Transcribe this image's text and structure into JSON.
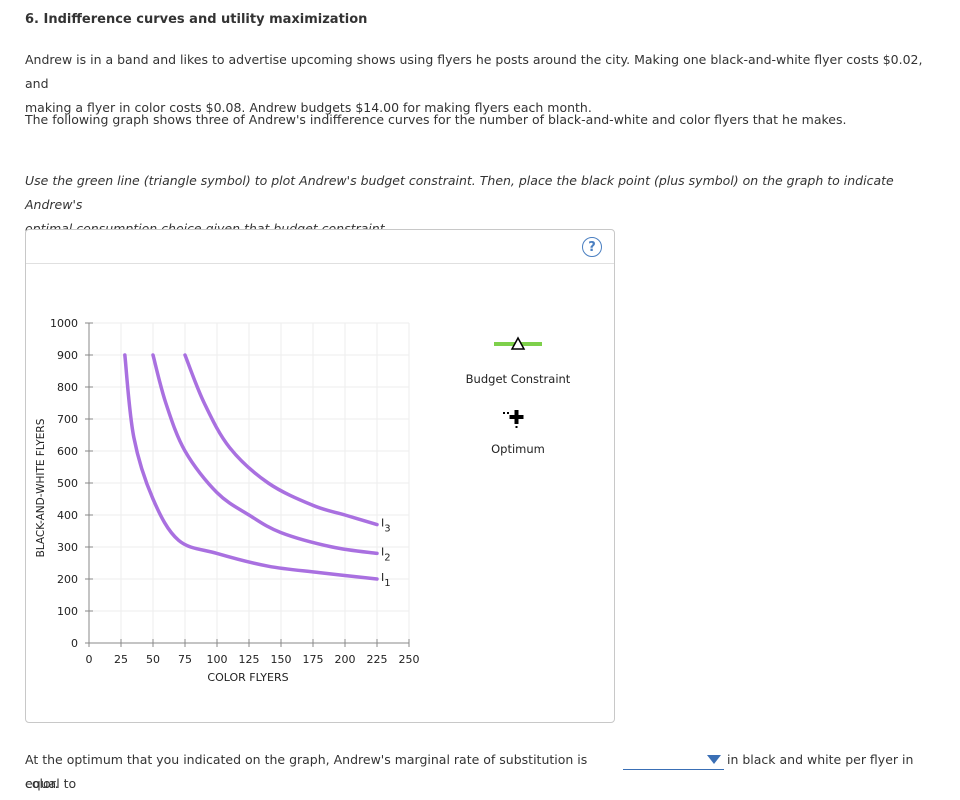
{
  "question": {
    "title": "6. Indifference curves and utility maximization",
    "intro_line1": "Andrew is in a band and likes to advertise upcoming shows using flyers he posts around the city. Making one black-and-white flyer costs $0.02, and",
    "intro_line2": "making a flyer in color costs $0.08. Andrew budgets $14.00 for making flyers each month.",
    "graph_intro": "The following graph shows three of Andrew's indifference curves for the number of black-and-white and color flyers that he makes.",
    "instruction_line1": "Use the green line (triangle symbol) to plot Andrew's budget constraint. Then, place the black point (plus symbol) on the graph to indicate Andrew's",
    "instruction_line2": "optimal consumption choice given that budget constraint."
  },
  "panel": {
    "help_symbol": "?",
    "legend": {
      "budget_label": "Budget Constraint",
      "optimum_label": "Optimum",
      "budget_color": "#7ed04b",
      "optimum_color": "#000000"
    }
  },
  "chart_data": {
    "type": "line",
    "xlabel": "COLOR FLYERS",
    "ylabel": "BLACK-AND-WHITE FLYERS",
    "xlim": [
      0,
      250
    ],
    "ylim": [
      0,
      1000
    ],
    "x_ticks": [
      "0",
      "25",
      "50",
      "75",
      "100",
      "125",
      "150",
      "175",
      "200",
      "225",
      "250"
    ],
    "y_ticks": [
      "0",
      "100",
      "200",
      "300",
      "400",
      "500",
      "600",
      "700",
      "800",
      "900",
      "1000"
    ],
    "grid": true,
    "series_color": "#a970e0",
    "series": [
      {
        "name": "I1",
        "label_main": "I",
        "label_sub": "1",
        "x": [
          28,
          35,
          50,
          70,
          100,
          140,
          180,
          225
        ],
        "y": [
          900,
          643,
          450,
          321,
          280,
          240,
          220,
          200
        ]
      },
      {
        "name": "I2",
        "label_main": "I",
        "label_sub": "2",
        "x": [
          50,
          60,
          75,
          100,
          125,
          150,
          190,
          225
        ],
        "y": [
          900,
          750,
          600,
          470,
          400,
          345,
          300,
          280
        ]
      },
      {
        "name": "I3",
        "label_main": "I",
        "label_sub": "3",
        "x": [
          75,
          90,
          110,
          140,
          175,
          200,
          225
        ],
        "y": [
          900,
          750,
          610,
          500,
          430,
          400,
          370
        ]
      }
    ]
  },
  "footer": {
    "text_before": "At the optimum that you indicated on the graph, Andrew's marginal rate of substitution is equal to",
    "text_after": "in black and white per flyer in",
    "text_line2": "color.",
    "dropdown_value": ""
  }
}
